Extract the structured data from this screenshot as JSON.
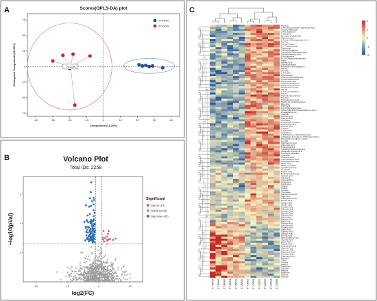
{
  "panels": {
    "A": {
      "letter": "A",
      "chart_data": {
        "type": "scatter",
        "title": "Scores(OPLS-DA) plot",
        "xlabel": "Component1(11.20%)",
        "ylabel": "Orthogonal Component1(18.59%)",
        "xlim": [
          -45,
          45
        ],
        "ylim": [
          -80,
          85
        ],
        "xticks": [
          -40,
          -30,
          -20,
          -10,
          0,
          10,
          20,
          30,
          40
        ],
        "yticks": [
          -75,
          -50,
          -25,
          0,
          25,
          50,
          75
        ],
        "point_label": "TY-CON",
        "legend_position": "top-right",
        "series": [
          {
            "name": "TY-RFM",
            "color": "#1f4e9c",
            "points": [
              [
                21,
                3
              ],
              [
                23,
                1
              ],
              [
                25,
                2
              ],
              [
                27,
                0
              ],
              [
                29,
                1
              ],
              [
                35,
                -2
              ]
            ]
          },
          {
            "name": "TY-CON",
            "color": "#c62828",
            "points": [
              [
                -24,
                18
              ],
              [
                -18,
                20
              ],
              [
                -8,
                17
              ],
              [
                -30,
                9
              ],
              [
                -20,
                -3
              ],
              [
                -17,
                -62
              ]
            ]
          }
        ]
      }
    },
    "B": {
      "letter": "B",
      "chart_data": {
        "type": "scatter",
        "title": "Volcano Plot",
        "subtitle": "Total IDs: 2258",
        "xlabel": "log2(FC)",
        "ylabel": "−log10(pVal)",
        "xlim": [
          -24,
          14
        ],
        "ylim": [
          0,
          3.6
        ],
        "xticks": [
          -20,
          -10,
          0,
          10
        ],
        "yticks": [
          1,
          2,
          3
        ],
        "legend_title": "Significant",
        "legend_position": "right",
        "series": [
          {
            "name": "Sig-Up (14)",
            "color": "#e05a6a",
            "count": 14
          },
          {
            "name": "NoDiff (2149)",
            "color": "#9e9e9e",
            "count": 2149
          },
          {
            "name": "Sig-Down (95)",
            "color": "#2a6db5",
            "count": 95
          }
        ]
      }
    },
    "C": {
      "letter": "C",
      "chart_data": {
        "type": "heatmap",
        "colorbar_ticks": [
          2,
          1,
          0,
          -1,
          -2
        ],
        "colors": {
          "high": "#c62828",
          "mid": "#f7f3c0",
          "low": "#2b5c9e"
        },
        "columns": [
          "TY-RFM3",
          "TY-RFM5",
          "TY-RFM6",
          "TY-RFM4",
          "TY-RFM1",
          "TY-RFM2",
          "TY-CON2",
          "TY-CON3",
          "TY-CON1",
          "TY-CON5",
          "TY-CON4",
          "TY-CON6"
        ],
        "rows": [
          "Asp-Leu",
          "1-Aminocyclohexane Carboxylic Acid",
          "Succinyl Aldehyde",
          "L-Phenylalanine",
          "L-Theanine",
          "Germacr-L-Ubiquinals",
          "Ribitonic Acid",
          "3-Amino-4-Methylpyrrole-1-Ol",
          "Tyr-Pro",
          "Tyrosyl-Glycine",
          "Tyr-3-Iodotyrosine",
          "Tryptophan",
          "3-Ketosphinganine",
          "Cyclodopa-5-Monoglucoside",
          "Orthophosphoric acid",
          "D-Homoserine",
          "16,17-Dihydroxyserpentine",
          "Uracil",
          "Azelaic Acid",
          "2-Methylpyridine",
          "N-Methyl-L-Phenylalanine",
          "Phe-Ile",
          "Phe-Ala",
          "L-Tyrosine",
          "Dihydrouracil",
          "3-Methoxybenzaldehyde",
          "2-Oxobutanoic Acid",
          "Cis-Aconitic Acid",
          "D-Glucuronolactone",
          "Indole-3-Acetic Acid",
          "Tetracosanoic Acid",
          "Val-Ala",
          "4-Coumaraldehyde",
          "Ala-Ile",
          "(Indol-3-yl)acetamide",
          "Phe-Pro",
          "Pentadecanoic acid",
          "Methyl-13-Cyclohexadiene",
          "Ecgonine",
          "Citric Acid",
          "Cis-2-Methylaconitate",
          "9-Oxo-10E,12Z-Octadecadienoic Acid",
          "Prostaglandin A2",
          "Guanine",
          "Aconitic Acid",
          "Caprylic acid",
          "D-Sorbitol",
          "2-Hydroxymuconate",
          "5-Methylcytosine",
          "Palmitic acid",
          "L-Valine",
          "L-Isoleucine",
          "Isoleucine",
          "2,3-Dihydroxy-3-Methylbutanoate",
          "2-Palmitoyl-Sn-Glycero-3-Phosphocholine",
          "N6,N6,N6-Trimethyl-L-Lysine",
          "Leu-Val",
          "Xanthurenic Acid",
          "Citramalic Acid",
          "D-Glucosamine",
          "3,4-Dihydroxybenzylamine",
          "Imidazole-4-Acetic Acid",
          "N-Acetyl-L-Histidine",
          "Tyramine",
          "Cinnamic Acid",
          "2-Aminoadipic Acid",
          "5,6-Dihydroxyindole",
          "Lauric acid",
          "Methyl Linoleate",
          "Cyclohexylamine",
          "Ceramide",
          "Stearic acid",
          "Dodecanedioic Acid",
          "Linoleic acid",
          "Adenosine",
          "Hypoxanthine",
          "Guanosine",
          "Xanthosine",
          "Inosine",
          "Uridine",
          "Cytidine",
          "Thymidine",
          "Farnesyl Acetone",
          "Tiglic Acid",
          "Phenyllactic Acid",
          "Ferulic Acid",
          "Sinapic Acid",
          "Vanillic Acid",
          "Gentisic Acid",
          "Phloretic Acid",
          "Syringic Acid",
          "Benzoic Acid",
          "Salicylic Acid",
          "Quinic Acid",
          "Shikimic Acid",
          "Malic Acid",
          "Fumaric Acid",
          "Succinic Acid",
          "Glutaric Acid",
          "Adipic Acid",
          "Suberic Acid",
          "Sebacic Acid",
          "Pimelic Acid",
          "Methylmalonic Acid",
          "Glycolic Acid",
          "Lactic Acid",
          "Pyruvic Acid",
          "Oxaloacetic Acid",
          "Glyceric Acid",
          "Threonic Acid",
          "Erythronic Acid",
          "Gluconic Acid",
          "Galactaric Acid",
          "Mannitol",
          "Xylitol",
          "Arabitol",
          "Inositol",
          "Trehalose",
          "Sucrose",
          "Maltose",
          "Raffinose",
          "Lactose",
          "Glucose"
        ]
      }
    }
  }
}
